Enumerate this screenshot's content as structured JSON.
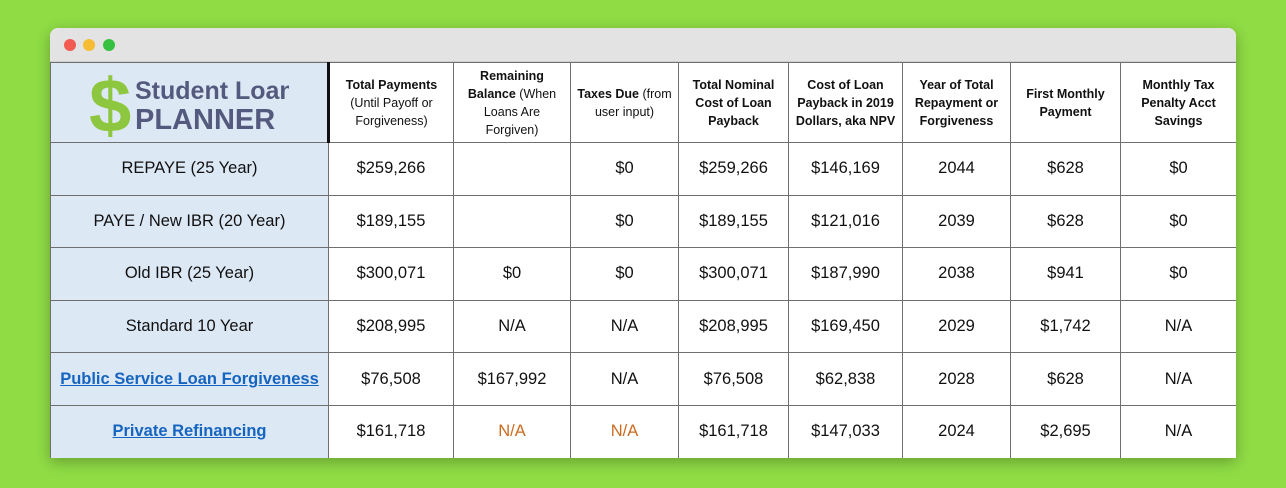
{
  "logo": {
    "line1": "Student Loan",
    "line2": "PLANNER",
    "symbol": "$",
    "colors": {
      "green": "#8dc63f",
      "slate": "#535a7d"
    }
  },
  "headers": [
    {
      "bold": "Total Payments",
      "normal": " (Until Payoff or Forgiveness)"
    },
    {
      "bold": "Remaining Balance",
      "normal": " (When Loans Are Forgiven)"
    },
    {
      "bold": "Taxes Due",
      "normal": " (from user input)"
    },
    {
      "bold": "Total Nominal Cost of Loan Payback",
      "normal": ""
    },
    {
      "bold": "Cost of Loan Payback in 2019 Dollars, aka NPV",
      "normal": ""
    },
    {
      "bold": "Year of Total Repayment or Forgiveness",
      "normal": ""
    },
    {
      "bold": "First Monthly Payment",
      "normal": ""
    },
    {
      "bold": "Monthly Tax Penalty Acct Savings",
      "normal": ""
    }
  ],
  "rows": [
    {
      "label": "REPAYE (25 Year)",
      "link": false,
      "cells": [
        "$259,266",
        "",
        "$0",
        "$259,266",
        "$146,169",
        "2044",
        "$628",
        "$0"
      ]
    },
    {
      "label": "PAYE / New IBR (20 Year)",
      "link": false,
      "cells": [
        "$189,155",
        "",
        "$0",
        "$189,155",
        "$121,016",
        "2039",
        "$628",
        "$0"
      ]
    },
    {
      "label": "Old IBR (25 Year)",
      "link": false,
      "cells": [
        "$300,071",
        "$0",
        "$0",
        "$300,071",
        "$187,990",
        "2038",
        "$941",
        "$0"
      ]
    },
    {
      "label": "Standard 10 Year",
      "link": false,
      "cells": [
        "$208,995",
        "N/A",
        "N/A",
        "$208,995",
        "$169,450",
        "2029",
        "$1,742",
        "N/A"
      ]
    },
    {
      "label": "Public Service Loan Forgiveness",
      "link": true,
      "cells": [
        "$76,508",
        "$167,992",
        "N/A",
        "$76,508",
        "$62,838",
        "2028",
        "$628",
        "N/A"
      ]
    },
    {
      "label": "Private Refinancing",
      "link": true,
      "cells": [
        "$161,718",
        "N/A",
        "N/A",
        "$161,718",
        "$147,033",
        "2024",
        "$2,695",
        "N/A"
      ]
    }
  ],
  "colors": {
    "na_highlight": "#cc6a1e",
    "link": "#1565c0",
    "label_bg": "#dde8f5"
  }
}
